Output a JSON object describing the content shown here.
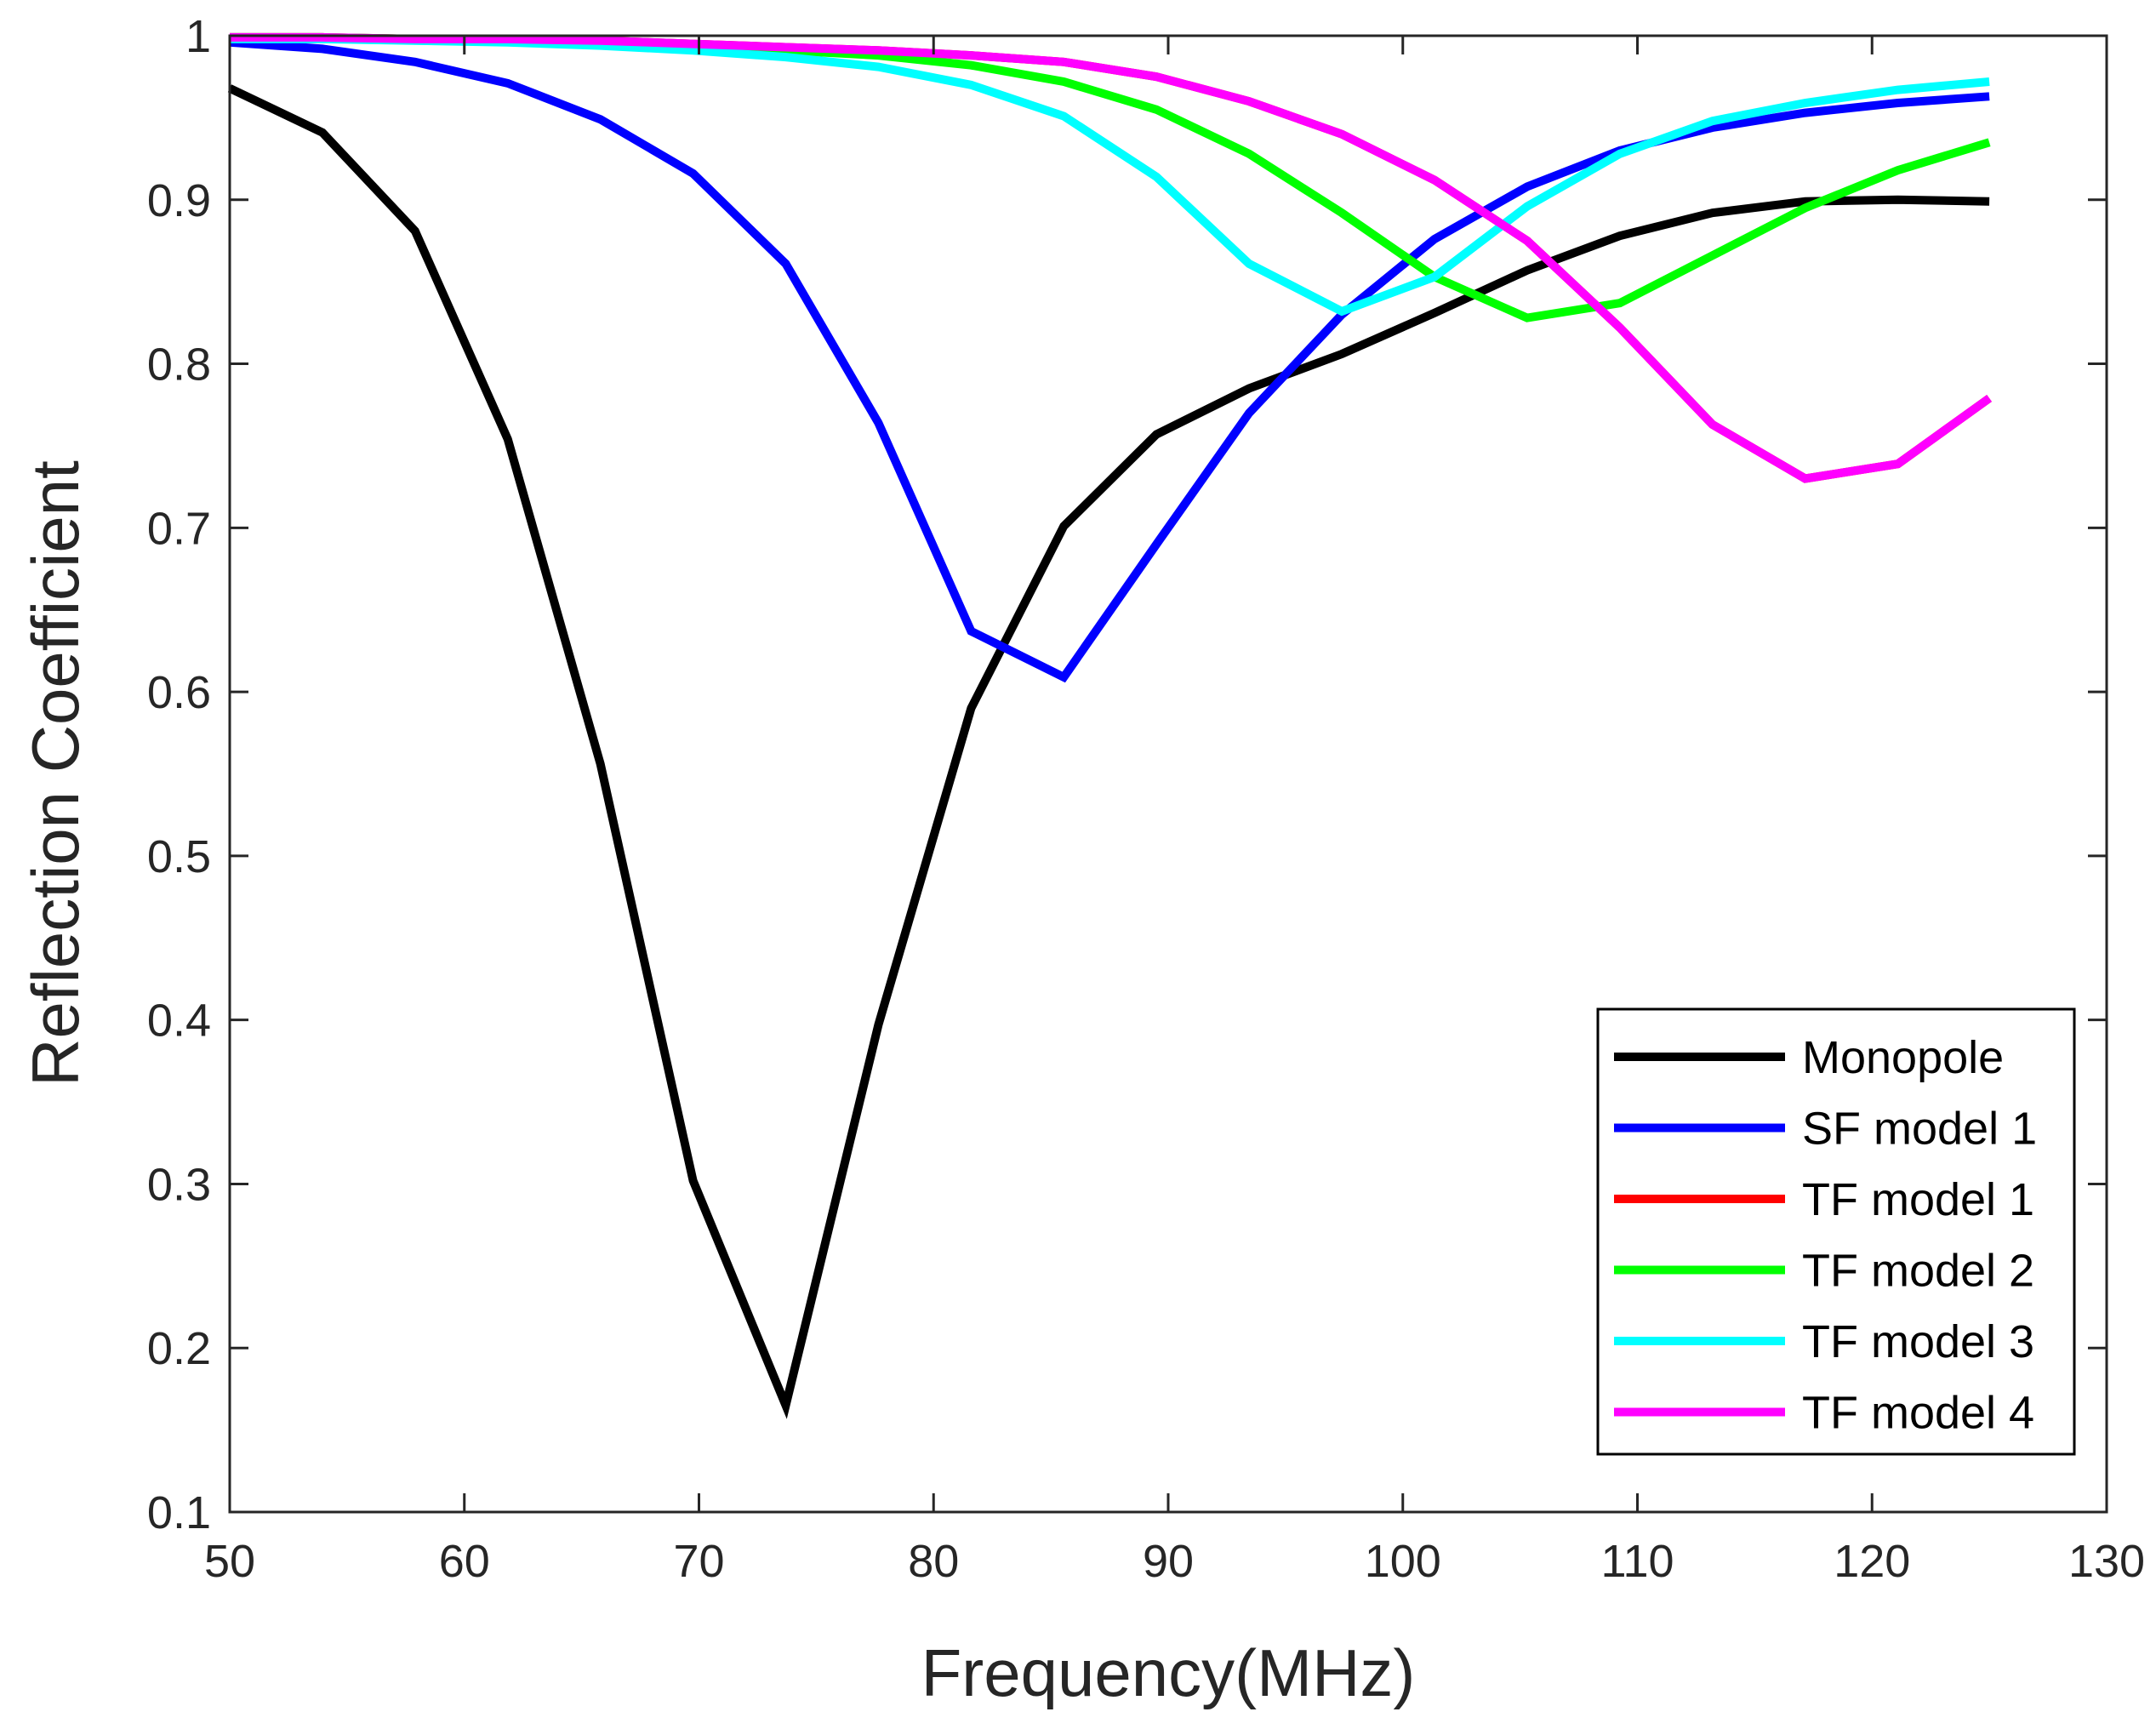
{
  "chart_data": {
    "type": "line",
    "title": "",
    "xlabel": "Frequency(MHz)",
    "ylabel": "Reflection Coefficient",
    "xlim": [
      50,
      130
    ],
    "ylim": [
      0.1,
      1
    ],
    "xticks": [
      50,
      60,
      70,
      80,
      90,
      100,
      110,
      120,
      130
    ],
    "yticks": [
      0.1,
      0.2,
      0.3,
      0.4,
      0.5,
      0.6,
      0.7,
      0.8,
      0.9,
      1
    ],
    "xtick_labels": [
      "50",
      "60",
      "70",
      "80",
      "90",
      "100",
      "110",
      "120",
      "130"
    ],
    "ytick_labels": [
      "0.1",
      "0.2",
      "0.3",
      "0.4",
      "0.5",
      "0.6",
      "0.7",
      "0.8",
      "0.9",
      "1"
    ],
    "grid": false,
    "legend_position": "bottom-right",
    "x": [
      50,
      53.95,
      57.9,
      61.85,
      65.8,
      69.75,
      73.7,
      77.65,
      81.6,
      85.55,
      89.5,
      93.45,
      97.4,
      101.35,
      105.3,
      109.25,
      113.2,
      117.15,
      121.1,
      125
    ],
    "series": [
      {
        "name": "Monopole",
        "color": "#000000",
        "values": [
          0.968,
          0.941,
          0.881,
          0.754,
          0.556,
          0.302,
          0.165,
          0.397,
          0.59,
          0.701,
          0.757,
          0.785,
          0.806,
          0.831,
          0.857,
          0.878,
          0.892,
          0.899,
          0.9,
          0.899
        ]
      },
      {
        "name": "SF model 1",
        "color": "#0000ff",
        "values": [
          0.996,
          0.992,
          0.984,
          0.971,
          0.949,
          0.916,
          0.861,
          0.764,
          0.637,
          0.609,
          0.69,
          0.77,
          0.83,
          0.876,
          0.908,
          0.93,
          0.944,
          0.953,
          0.959,
          0.963
        ]
      },
      {
        "name": "TF model 1",
        "color": "#ff0000",
        "values": [
          0.999,
          0.999,
          0.998,
          0.998,
          0.997,
          0.995,
          0.993,
          0.991,
          0.988,
          0.984,
          0.975,
          0.96,
          0.94,
          0.912,
          0.875,
          0.822,
          0.763,
          0.73,
          0.739,
          0.779
        ]
      },
      {
        "name": "TF model 2",
        "color": "#00ff00",
        "values": [
          0.999,
          0.999,
          0.998,
          0.997,
          0.996,
          0.994,
          0.991,
          0.988,
          0.982,
          0.972,
          0.955,
          0.928,
          0.892,
          0.853,
          0.828,
          0.837,
          0.866,
          0.895,
          0.918,
          0.935
        ]
      },
      {
        "name": "TF model 3",
        "color": "#00ffff",
        "values": [
          0.998,
          0.998,
          0.997,
          0.996,
          0.994,
          0.991,
          0.987,
          0.981,
          0.97,
          0.951,
          0.914,
          0.861,
          0.832,
          0.853,
          0.896,
          0.928,
          0.948,
          0.959,
          0.967,
          0.972
        ]
      },
      {
        "name": "TF model 4",
        "color": "#ff00ff",
        "values": [
          0.999,
          0.999,
          0.998,
          0.998,
          0.997,
          0.995,
          0.993,
          0.991,
          0.988,
          0.984,
          0.975,
          0.96,
          0.94,
          0.912,
          0.875,
          0.822,
          0.763,
          0.73,
          0.739,
          0.779
        ]
      }
    ]
  }
}
